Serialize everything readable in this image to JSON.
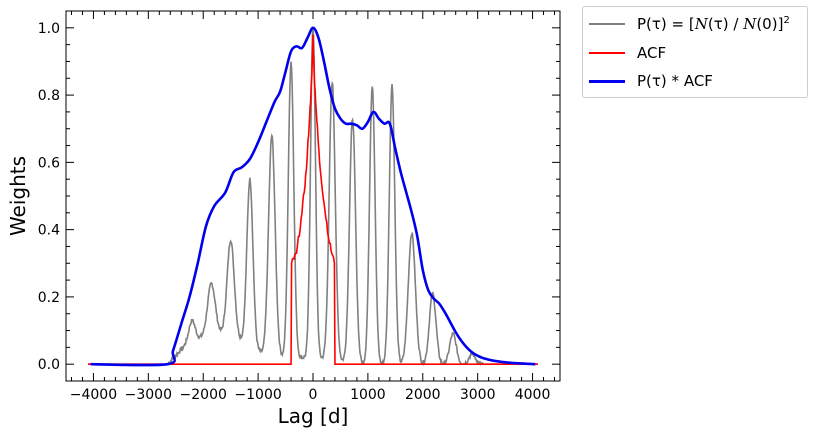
{
  "chart_data": {
    "type": "line",
    "xlabel": "Lag [d]",
    "ylabel": "Weights",
    "xlim": [
      -4500,
      4500
    ],
    "ylim": [
      -0.05,
      1.05
    ],
    "xticks": [
      -4000,
      -3000,
      -2000,
      -1000,
      0,
      1000,
      2000,
      3000,
      4000
    ],
    "yticks": [
      0.0,
      0.2,
      0.4,
      0.6,
      0.8,
      1.0
    ],
    "xtick_labels": [
      "−4000",
      "−3000",
      "−2000",
      "−1000",
      "0",
      "1000",
      "2000",
      "3000",
      "4000"
    ],
    "ytick_labels": [
      "0.0",
      "0.2",
      "0.4",
      "0.6",
      "0.8",
      "1.0"
    ],
    "legend_position": "outside-top-right",
    "series": [
      {
        "name": "P(τ) = [N(τ) / N(0)]²",
        "color": "#808080",
        "peaks": [
          {
            "center": -2200,
            "height": 0.13,
            "width": 55
          },
          {
            "center": -1850,
            "height": 0.24,
            "width": 70
          },
          {
            "center": -1500,
            "height": 0.37,
            "width": 65
          },
          {
            "center": -1150,
            "height": 0.55,
            "width": 55
          },
          {
            "center": -750,
            "height": 0.68,
            "width": 60
          },
          {
            "center": -400,
            "height": 0.9,
            "width": 50
          },
          {
            "center": 0,
            "height": 1.0,
            "width": 45
          },
          {
            "center": 350,
            "height": 0.84,
            "width": 55
          },
          {
            "center": 720,
            "height": 0.73,
            "width": 55
          },
          {
            "center": 1080,
            "height": 0.83,
            "width": 50
          },
          {
            "center": 1440,
            "height": 0.83,
            "width": 50
          },
          {
            "center": 1800,
            "height": 0.39,
            "width": 65
          },
          {
            "center": 2180,
            "height": 0.21,
            "width": 60
          },
          {
            "center": 2550,
            "height": 0.09,
            "width": 60
          },
          {
            "center": 2900,
            "height": 0.03,
            "width": 60
          }
        ],
        "baseline": [
          [
            -4100,
            0.0
          ],
          [
            -2650,
            0.0
          ],
          [
            -2250,
            0.07
          ],
          [
            -2000,
            0.08
          ],
          [
            -1700,
            0.09
          ],
          [
            -1300,
            0.07
          ],
          [
            -900,
            0.03
          ],
          [
            -500,
            0.02
          ],
          [
            0,
            0.02
          ],
          [
            500,
            0.01
          ],
          [
            1000,
            0.0
          ],
          [
            1500,
            0.0
          ],
          [
            2000,
            0.0
          ],
          [
            2500,
            0.0
          ],
          [
            4100,
            0.0
          ]
        ]
      },
      {
        "name": "ACF",
        "color": "#ff0000",
        "points": [
          [
            -4100,
            0.0
          ],
          [
            -400,
            0.0
          ],
          [
            -390,
            0.3
          ],
          [
            -300,
            0.33
          ],
          [
            -200,
            0.45
          ],
          [
            -120,
            0.58
          ],
          [
            -60,
            0.74
          ],
          [
            -20,
            0.86
          ],
          [
            0,
            0.98
          ],
          [
            20,
            0.87
          ],
          [
            60,
            0.75
          ],
          [
            120,
            0.6
          ],
          [
            200,
            0.48
          ],
          [
            300,
            0.36
          ],
          [
            390,
            0.3
          ],
          [
            400,
            0.0
          ],
          [
            4100,
            0.0
          ]
        ]
      },
      {
        "name": "P(τ) * ACF",
        "color": "#0000ee",
        "points": [
          [
            -4050,
            0.0
          ],
          [
            -2650,
            0.0
          ],
          [
            -2550,
            0.04
          ],
          [
            -2400,
            0.12
          ],
          [
            -2250,
            0.2
          ],
          [
            -2100,
            0.3
          ],
          [
            -1950,
            0.41
          ],
          [
            -1800,
            0.47
          ],
          [
            -1600,
            0.51
          ],
          [
            -1450,
            0.57
          ],
          [
            -1300,
            0.585
          ],
          [
            -1150,
            0.61
          ],
          [
            -1000,
            0.66
          ],
          [
            -850,
            0.72
          ],
          [
            -700,
            0.78
          ],
          [
            -600,
            0.81
          ],
          [
            -500,
            0.87
          ],
          [
            -400,
            0.93
          ],
          [
            -300,
            0.945
          ],
          [
            -200,
            0.94
          ],
          [
            -100,
            0.97
          ],
          [
            0,
            1.0
          ],
          [
            100,
            0.97
          ],
          [
            200,
            0.9
          ],
          [
            300,
            0.82
          ],
          [
            400,
            0.76
          ],
          [
            500,
            0.73
          ],
          [
            600,
            0.715
          ],
          [
            700,
            0.715
          ],
          [
            800,
            0.71
          ],
          [
            900,
            0.7
          ],
          [
            1000,
            0.72
          ],
          [
            1100,
            0.75
          ],
          [
            1200,
            0.73
          ],
          [
            1300,
            0.715
          ],
          [
            1400,
            0.715
          ],
          [
            1500,
            0.64
          ],
          [
            1600,
            0.57
          ],
          [
            1700,
            0.51
          ],
          [
            1800,
            0.45
          ],
          [
            1900,
            0.38
          ],
          [
            2000,
            0.28
          ],
          [
            2100,
            0.22
          ],
          [
            2200,
            0.195
          ],
          [
            2300,
            0.18
          ],
          [
            2400,
            0.155
          ],
          [
            2500,
            0.125
          ],
          [
            2600,
            0.095
          ],
          [
            2700,
            0.07
          ],
          [
            2800,
            0.05
          ],
          [
            2900,
            0.035
          ],
          [
            3000,
            0.025
          ],
          [
            3100,
            0.018
          ],
          [
            3300,
            0.01
          ],
          [
            3600,
            0.004
          ],
          [
            4050,
            0.0
          ]
        ]
      }
    ]
  },
  "legend": {
    "entries": [
      {
        "label_prefix": "P(τ) = [",
        "label_italic_1": "N",
        "label_mid": "(τ) / ",
        "label_italic_2": "N",
        "label_suffix": "(0)]",
        "label_sup": "2",
        "color": "#808080"
      },
      {
        "label": "ACF",
        "color": "#ff0000"
      },
      {
        "label": "P(τ) * ACF",
        "color": "#0000ee"
      }
    ]
  }
}
